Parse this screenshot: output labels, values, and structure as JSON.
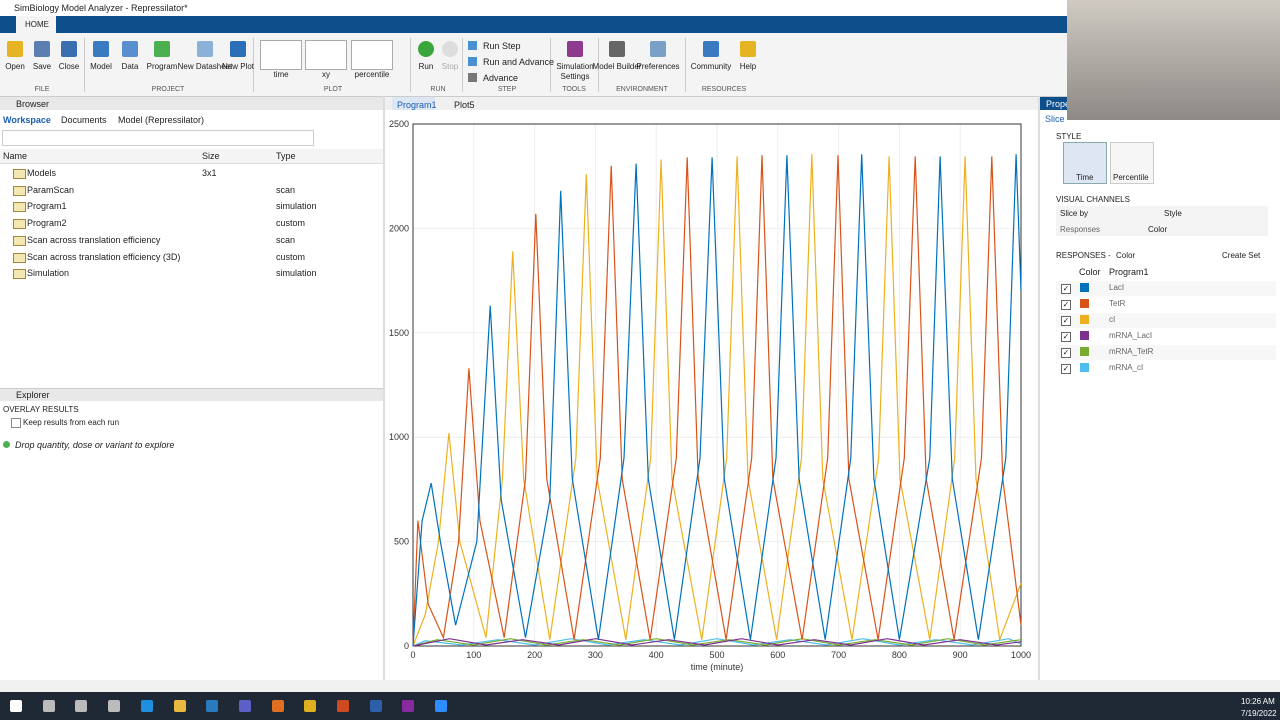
{
  "window_title": "SimBiology Model Analyzer - Repressilator*",
  "ribbon": {
    "tab": "HOME",
    "groups": [
      {
        "label": "FILE",
        "buttons": [
          "Open",
          "Save",
          "Close"
        ]
      },
      {
        "label": "PROJECT",
        "buttons": [
          "Model",
          "Data",
          "Program",
          "New Datasheet",
          "New Plot"
        ]
      },
      {
        "label": "PLOT",
        "buttons": [
          "time",
          "xy",
          "percentile"
        ]
      },
      {
        "label": "RUN",
        "buttons": [
          "Run",
          "Stop"
        ]
      },
      {
        "label": "STEP",
        "buttons": [
          "Run Step",
          "Run and Advance",
          "Advance"
        ]
      },
      {
        "label": "TOOLS",
        "buttons": [
          "Simulation Settings"
        ]
      },
      {
        "label": "ENVIRONMENT",
        "buttons": [
          "Model Builder",
          "Preferences"
        ]
      },
      {
        "label": "RESOURCES",
        "buttons": [
          "Community",
          "Help"
        ]
      }
    ]
  },
  "browser": {
    "title": "Browser",
    "breadcrumbs": [
      "Workspace",
      "Documents",
      "Model (Repressilator)"
    ],
    "columns": [
      "Name",
      "Size",
      "Type"
    ],
    "rows": [
      {
        "name": "Models",
        "size": "3x1"
      },
      {
        "name": "ParamScan",
        "type": "scan"
      },
      {
        "name": "Program1",
        "type": "simulation"
      },
      {
        "name": "Program2",
        "type": "custom"
      },
      {
        "name": "Scan across translation efficiency",
        "type": "scan"
      },
      {
        "name": "Scan across translation efficiency (3D)",
        "type": "custom"
      },
      {
        "name": "Simulation",
        "type": "simulation"
      }
    ]
  },
  "explorer": {
    "title": "Explorer",
    "section": "OVERLAY RESULTS",
    "checkbox": "Keep results from each run",
    "hint": "Drop quantity, dose or variant to explore"
  },
  "plot_tabs": [
    "Program1",
    "Plot5"
  ],
  "chart_data": {
    "type": "line",
    "xlabel": "time (minute)",
    "xlim": [
      0,
      1000
    ],
    "ylim": [
      0,
      2500
    ],
    "xticks": [
      0,
      100,
      200,
      300,
      400,
      500,
      600,
      700,
      800,
      900,
      1000
    ],
    "yticks": [
      0,
      500,
      1000,
      1500,
      2000,
      2500
    ],
    "grid": true,
    "series": [
      {
        "name": "LacI",
        "color": "#0072bd",
        "x": [
          0,
          15,
          30,
          45,
          70,
          105,
          127,
          145,
          185,
          225,
          243,
          262,
          305,
          347,
          367,
          387,
          430,
          472,
          492,
          512,
          555,
          597,
          615,
          635,
          678,
          720,
          738,
          758,
          800,
          850,
          867,
          887,
          930,
          975,
          992,
          1000
        ],
        "values": [
          0,
          600,
          780,
          500,
          100,
          500,
          1630,
          700,
          40,
          700,
          2180,
          800,
          30,
          900,
          2310,
          800,
          30,
          900,
          2340,
          800,
          30,
          900,
          2350,
          800,
          30,
          900,
          2355,
          800,
          30,
          900,
          2345,
          800,
          30,
          900,
          2355,
          1700
        ]
      },
      {
        "name": "TetR",
        "color": "#d95319",
        "x": [
          0,
          8,
          25,
          50,
          75,
          92,
          110,
          150,
          185,
          202,
          220,
          265,
          308,
          326,
          344,
          390,
          433,
          451,
          469,
          515,
          557,
          574,
          592,
          640,
          682,
          699,
          717,
          765,
          808,
          826,
          844,
          890,
          935,
          952,
          970,
          1000
        ],
        "values": [
          0,
          600,
          200,
          40,
          500,
          1330,
          600,
          40,
          800,
          2070,
          800,
          30,
          900,
          2300,
          800,
          30,
          900,
          2340,
          800,
          30,
          900,
          2350,
          800,
          30,
          900,
          2350,
          800,
          30,
          900,
          2345,
          800,
          30,
          900,
          2345,
          800,
          100
        ]
      },
      {
        "name": "cI",
        "color": "#edb120",
        "x": [
          0,
          20,
          42,
          59,
          77,
          120,
          147,
          164,
          182,
          225,
          268,
          285,
          303,
          350,
          391,
          408,
          426,
          475,
          516,
          533,
          551,
          598,
          639,
          656,
          674,
          722,
          766,
          783,
          801,
          850,
          891,
          908,
          926,
          965,
          1000
        ],
        "values": [
          0,
          150,
          500,
          1020,
          500,
          40,
          800,
          1890,
          800,
          30,
          900,
          2260,
          800,
          30,
          900,
          2330,
          800,
          30,
          900,
          2345,
          800,
          30,
          900,
          2355,
          800,
          30,
          900,
          2345,
          800,
          30,
          900,
          2345,
          800,
          30,
          300
        ]
      },
      {
        "name": "mRNA_LacI",
        "color": "#7e2f8e",
        "x": [
          0,
          60,
          120,
          180,
          240,
          300,
          360,
          420,
          480,
          540,
          600,
          660,
          720,
          780,
          840,
          900,
          960,
          1000
        ],
        "values": [
          0,
          35,
          5,
          30,
          5,
          35,
          5,
          30,
          5,
          35,
          5,
          30,
          5,
          35,
          5,
          30,
          5,
          20
        ]
      },
      {
        "name": "mRNA_TetR",
        "color": "#77ac30",
        "x": [
          0,
          40,
          100,
          160,
          220,
          280,
          340,
          400,
          460,
          520,
          580,
          640,
          700,
          760,
          820,
          880,
          940,
          1000
        ],
        "values": [
          0,
          30,
          5,
          35,
          5,
          30,
          5,
          35,
          5,
          30,
          5,
          35,
          5,
          30,
          5,
          35,
          5,
          30
        ]
      },
      {
        "name": "mRNA_cI",
        "color": "#4dbeee",
        "x": [
          0,
          20,
          80,
          140,
          200,
          260,
          320,
          380,
          440,
          500,
          560,
          620,
          680,
          740,
          800,
          860,
          920,
          980,
          1000
        ],
        "values": [
          0,
          25,
          5,
          30,
          5,
          35,
          5,
          30,
          5,
          35,
          5,
          30,
          5,
          35,
          5,
          30,
          5,
          35,
          10
        ]
      }
    ]
  },
  "properties": {
    "title": "Prope",
    "tab": "Slice",
    "style_heading": "STYLE",
    "styles": [
      "Time",
      "Percentile"
    ],
    "channels_heading": "VISUAL CHANNELS",
    "channel_columns": [
      "Slice by",
      "Style"
    ],
    "channel_row": [
      "Responses",
      "Color"
    ],
    "responses_heading": "RESPONSES -",
    "responses_mode": "Color",
    "create_set": "Create Set",
    "response_columns": [
      "Color",
      "Program1"
    ]
  },
  "taskbar": {
    "time": "10:26 AM",
    "date": "7/19/2022"
  }
}
